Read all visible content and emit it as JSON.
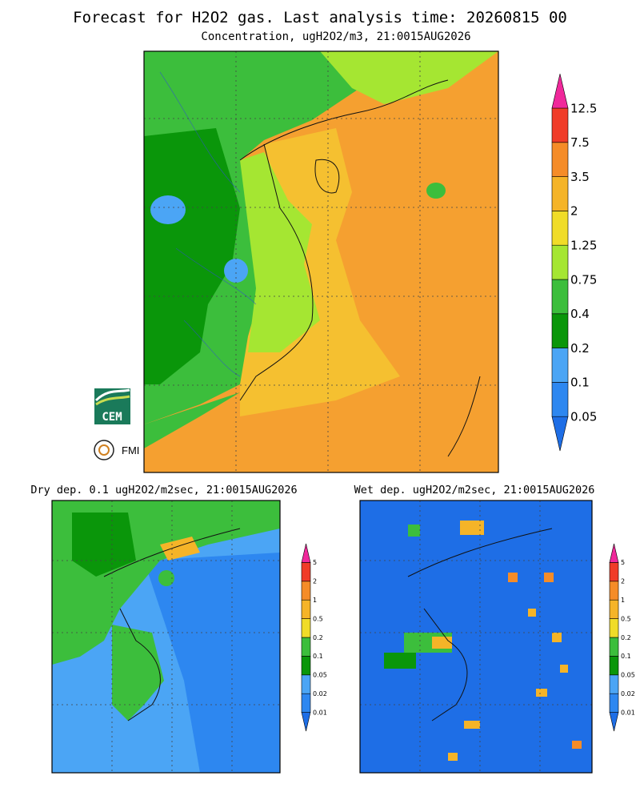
{
  "header": {
    "title": "Forecast for H2O2 gas. Last analysis time: 20260815 00",
    "subtitle": "Concentration, ugH2O2/m3, 21:0015AUG2026"
  },
  "main_legend": {
    "labels": [
      "0.05",
      "0.1",
      "0.2",
      "0.4",
      "0.75",
      "1.25",
      "2",
      "3.5",
      "7.5",
      "12.5"
    ],
    "colors": [
      "#1e6ee6",
      "#2d87f0",
      "#4ba5f5",
      "#0a960a",
      "#3cbe3c",
      "#a5e632",
      "#f0dc28",
      "#f5b428",
      "#f58c28",
      "#f03c28",
      "#f0289b"
    ]
  },
  "dry_panel": {
    "title": "Dry dep. 0.1 ugH2O2/m2sec, 21:0015AUG2026",
    "legend_labels": [
      "0.01",
      "0.02",
      "0.05",
      "0.1",
      "0.2",
      "0.5",
      "1",
      "2",
      "5"
    ],
    "colors": [
      "#1e6ee6",
      "#2d87f0",
      "#4ba5f5",
      "#0a960a",
      "#3cbe3c",
      "#f0dc28",
      "#f5b428",
      "#f58c28",
      "#f03c28",
      "#f0289b"
    ]
  },
  "wet_panel": {
    "title": "Wet dep. ugH2O2/m2sec, 21:0015AUG2026",
    "legend_labels": [
      "0.01",
      "0.02",
      "0.05",
      "0.1",
      "0.2",
      "0.5",
      "1",
      "2",
      "5"
    ],
    "colors": [
      "#1e6ee6",
      "#2d87f0",
      "#4ba5f5",
      "#0a960a",
      "#3cbe3c",
      "#f0dc28",
      "#f5b428",
      "#f58c28",
      "#f03c28",
      "#f0289b"
    ]
  },
  "logos": {
    "cem": "CEM",
    "fmi": "FMI"
  }
}
